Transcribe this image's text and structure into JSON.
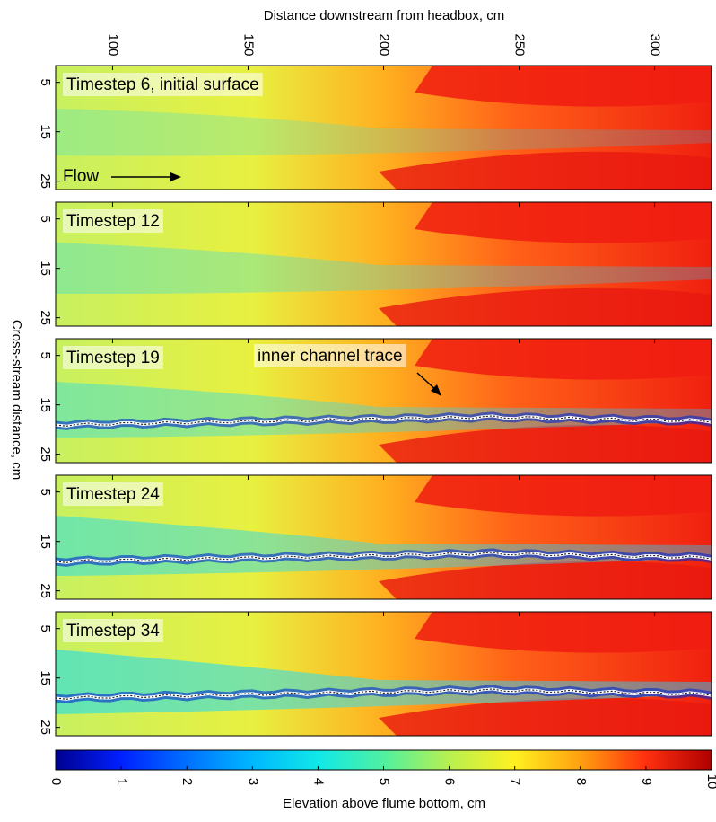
{
  "chart_data": {
    "type": "heatmap",
    "xlabel": "Distance downstream from headbox, cm",
    "ylabel": "Cross-stream distance, cm",
    "xlim": [
      79,
      321
    ],
    "xticks": [
      100,
      150,
      200,
      250,
      300
    ],
    "ylim": [
      1.6,
      26.7
    ],
    "yticks": [
      5,
      15,
      25
    ],
    "panels": [
      {
        "label": "Timestep 6, initial surface",
        "annotation": "Flow"
      },
      {
        "label": "Timestep 12"
      },
      {
        "label": "Timestep 19",
        "annotation": "inner channel trace"
      },
      {
        "label": "Timestep 24"
      },
      {
        "label": "Timestep 34"
      }
    ],
    "colorbar": {
      "label": "Elevation above flume bottom, cm",
      "lim": [
        0,
        10
      ],
      "ticks": [
        0,
        1,
        2,
        3,
        4,
        5,
        6,
        7,
        8,
        9,
        10
      ],
      "colors": [
        "#00008f",
        "#0020ff",
        "#0070ff",
        "#00b8ff",
        "#10e8e8",
        "#50f0a0",
        "#b8f050",
        "#fff020",
        "#ffa010",
        "#ff3010",
        "#b00000"
      ]
    }
  }
}
